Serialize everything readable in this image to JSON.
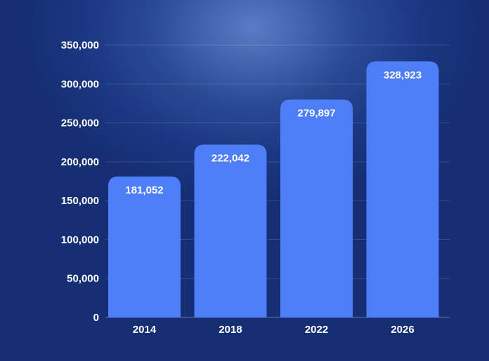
{
  "chart_data": {
    "type": "bar",
    "categories": [
      "2014",
      "2018",
      "2022",
      "2026"
    ],
    "values": [
      181052,
      222042,
      279897,
      328923
    ],
    "data_labels": [
      "181,052",
      "222,042",
      "279,897",
      "328,923"
    ],
    "ylim": [
      0,
      350000
    ],
    "yticks": [
      0,
      50000,
      100000,
      150000,
      200000,
      250000,
      300000,
      350000
    ],
    "ytick_labels": [
      "0",
      "50,000",
      "100,000",
      "150,000",
      "200,000",
      "250,000",
      "300,000",
      "350,000"
    ],
    "grid": true,
    "bar_color": "#4d7ef7"
  }
}
